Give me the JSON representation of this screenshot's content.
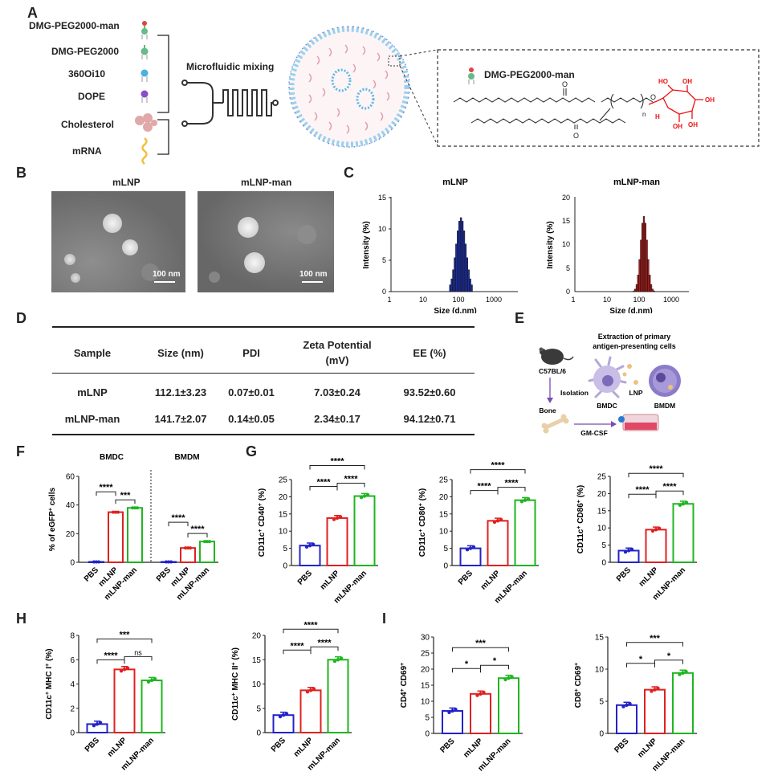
{
  "panel_letters": {
    "a": "A",
    "b": "B",
    "c": "C",
    "d": "D",
    "e": "E",
    "f": "F",
    "g": "G",
    "h": "H",
    "i": "I"
  },
  "panelA": {
    "components": [
      "DMG-PEG2000-man",
      "DMG-PEG2000",
      "360Oi10",
      "DOPE",
      "Cholesterol",
      "mRNA"
    ],
    "process": "Microfluidic mixing",
    "zoom_label": "DMG-PEG2000-man",
    "structure_subscript": "n",
    "atoms": {
      "oh": "OH",
      "h": "H",
      "ho": "HO",
      "o": "O"
    }
  },
  "panelB": {
    "titles": [
      "mLNP",
      "mLNP-man"
    ],
    "scale": "100 nm"
  },
  "panelC": {
    "titles": [
      "mLNP",
      "mLNP-man"
    ],
    "ylabel": "Intensity (%)",
    "xlabel": "Size (d.nm)",
    "xticks": [
      "1",
      "10",
      "100",
      "1000"
    ],
    "yticks_left": [
      "0",
      "5",
      "10",
      "15"
    ],
    "yticks_right": [
      "0",
      "5",
      "10",
      "15",
      "20"
    ],
    "colors": [
      "#1d2d9c",
      "#a61b1b"
    ]
  },
  "panelD": {
    "headers": [
      "Sample",
      "Size (nm)",
      "PDI",
      "Zeta Potential",
      "(mV)",
      "EE (%)"
    ],
    "rows": [
      [
        "mLNP",
        "112.1±3.23",
        "0.07±0.01",
        "7.03±0.24",
        "93.52±0.60"
      ],
      [
        "mLNP-man",
        "141.7±2.07",
        "0.14±0.05",
        "2.34±0.17",
        "94.12±0.71"
      ]
    ]
  },
  "panelE": {
    "title1": "Extraction of primary",
    "title2": "antigen-presenting cells",
    "mouse": "C57BL/6",
    "isolation": "Isolation",
    "bone": "Bone",
    "gmcsf": "GM-CSF",
    "bmdc": "BMDC",
    "lnp": "LNP",
    "bmdm": "BMDM"
  },
  "groups": [
    "PBS",
    "mLNP",
    "mLNP-man"
  ],
  "colors": {
    "pbs": "#2323c8",
    "mlnp": "#e02020",
    "man": "#1fb61f"
  },
  "sig": {
    "s4": "****",
    "s3": "***",
    "s1": "*",
    "ns": "ns"
  },
  "panelF": {
    "headers": [
      "BMDC",
      "BMDM"
    ]
  },
  "chart_data": [
    {
      "id": "F",
      "type": "bar",
      "ylabel_base": "% of eGFP",
      "ylabel_sup": "+",
      "ylabel_tail": " cells",
      "groups": [
        "BMDC",
        "BMDM"
      ],
      "categories": [
        "PBS",
        "mLNP",
        "mLNP-man"
      ],
      "values": [
        [
          0.3,
          35,
          38
        ],
        [
          0.3,
          10,
          14.5
        ]
      ],
      "ylim": [
        0,
        60
      ],
      "yticks": [
        "0",
        "20",
        "40",
        "60"
      ],
      "sig": [
        [
          "****",
          "***"
        ],
        [
          "****",
          "****"
        ]
      ]
    },
    {
      "id": "G1",
      "type": "bar",
      "ylabel": "CD11c+ CD40+ (%)",
      "categories": [
        "PBS",
        "mLNP",
        "mLNP-man"
      ],
      "values": [
        5.8,
        13.8,
        20.2
      ],
      "ylim": [
        0,
        25
      ],
      "yticks": [
        "0",
        "5",
        "10",
        "15",
        "20",
        "25"
      ],
      "sig": [
        "****",
        "****",
        "****"
      ]
    },
    {
      "id": "G2",
      "type": "bar",
      "ylabel": "CD11c+ CD80+ (%)",
      "categories": [
        "PBS",
        "mLNP",
        "mLNP-man"
      ],
      "values": [
        5.0,
        13.0,
        19.0
      ],
      "ylim": [
        0,
        25
      ],
      "yticks": [
        "0",
        "5",
        "10",
        "15",
        "20",
        "25"
      ],
      "sig": [
        "****",
        "****",
        "****"
      ]
    },
    {
      "id": "G3",
      "type": "bar",
      "ylabel": "CD11c+ CD86+ (%)",
      "categories": [
        "PBS",
        "mLNP",
        "mLNP-man"
      ],
      "values": [
        3.4,
        9.5,
        17.0
      ],
      "ylim": [
        0,
        25
      ],
      "yticks": [
        "0",
        "5",
        "10",
        "15",
        "20",
        "25"
      ],
      "sig": [
        "****",
        "****",
        "****"
      ]
    },
    {
      "id": "H1",
      "type": "bar",
      "ylabel": "CD11c+ MHC I+ (%)",
      "categories": [
        "PBS",
        "mLNP",
        "mLNP-man"
      ],
      "values": [
        0.7,
        5.2,
        4.3
      ],
      "ylim": [
        0,
        8
      ],
      "yticks": [
        "0",
        "2",
        "4",
        "6",
        "8"
      ],
      "sig": [
        "***",
        "****",
        "ns"
      ]
    },
    {
      "id": "H2",
      "type": "bar",
      "ylabel": "CD11c+ MHC II+ (%)",
      "categories": [
        "PBS",
        "mLNP",
        "mLNP-man"
      ],
      "values": [
        3.6,
        8.7,
        15.0
      ],
      "ylim": [
        0,
        20
      ],
      "yticks": [
        "0",
        "5",
        "10",
        "15",
        "20"
      ],
      "sig": [
        "****",
        "****",
        "****"
      ]
    },
    {
      "id": "I1",
      "type": "bar",
      "ylabel": "CD4+ CD69+",
      "categories": [
        "PBS",
        "mLNP",
        "mLNP-man"
      ],
      "values": [
        7.0,
        12.3,
        17.2
      ],
      "ylim": [
        0,
        30
      ],
      "yticks": [
        "0",
        "5",
        "10",
        "15",
        "20",
        "25",
        "30"
      ],
      "sig": [
        "***",
        "*",
        "*"
      ]
    },
    {
      "id": "I2",
      "type": "bar",
      "ylabel": "CD8+ CD69+",
      "categories": [
        "PBS",
        "mLNP",
        "mLNP-man"
      ],
      "values": [
        4.4,
        6.8,
        9.4
      ],
      "ylim": [
        0,
        15
      ],
      "yticks": [
        "0",
        "5",
        "10",
        "15"
      ],
      "sig": [
        "***",
        "*",
        "*"
      ]
    }
  ]
}
